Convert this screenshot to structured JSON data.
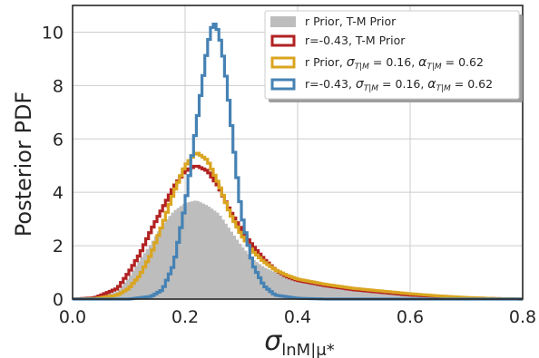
{
  "chart_data": {
    "type": "histogram",
    "title": "",
    "xlabel": "σ_{lnM|μ*}",
    "xlabel_main": "σ",
    "xlabel_sub": "lnM|μ*",
    "ylabel": "Posterior PDF",
    "xlim": [
      0.0,
      0.8
    ],
    "ylim": [
      0,
      11
    ],
    "xticks": [
      0.0,
      0.2,
      0.4,
      0.6,
      0.8
    ],
    "xtick_labels": [
      "0.0",
      "0.2",
      "0.4",
      "0.6",
      "0.8"
    ],
    "yticks": [
      0,
      2,
      4,
      6,
      8,
      10
    ],
    "ytick_labels": [
      "0",
      "2",
      "4",
      "6",
      "8",
      "10"
    ],
    "grid": true,
    "legend_position": "top-right",
    "series": [
      {
        "name": "r Prior, T-M Prior",
        "style": "filled",
        "color": "#bdbdbd",
        "x": [
          0.0,
          0.04,
          0.08,
          0.1,
          0.12,
          0.14,
          0.16,
          0.18,
          0.2,
          0.22,
          0.24,
          0.26,
          0.28,
          0.3,
          0.32,
          0.34,
          0.36,
          0.38,
          0.4,
          0.45,
          0.5,
          0.55,
          0.6,
          0.65,
          0.7,
          0.75,
          0.8
        ],
        "y": [
          0.0,
          0.05,
          0.3,
          0.8,
          1.5,
          2.1,
          2.8,
          3.3,
          3.6,
          3.7,
          3.5,
          3.2,
          2.6,
          2.0,
          1.5,
          1.2,
          1.0,
          0.9,
          0.8,
          0.6,
          0.45,
          0.3,
          0.2,
          0.12,
          0.05,
          0.02,
          0.0
        ]
      },
      {
        "name": "r=-0.43, T-M Prior",
        "style": "step",
        "color": "#b22222",
        "x": [
          0.0,
          0.04,
          0.08,
          0.1,
          0.12,
          0.14,
          0.16,
          0.18,
          0.2,
          0.22,
          0.24,
          0.26,
          0.28,
          0.3,
          0.32,
          0.34,
          0.36,
          0.38,
          0.4,
          0.45,
          0.5,
          0.55,
          0.6,
          0.65,
          0.7,
          0.75,
          0.8
        ],
        "y": [
          0.0,
          0.05,
          0.4,
          1.0,
          1.7,
          2.6,
          3.4,
          4.2,
          4.8,
          5.0,
          4.8,
          4.2,
          3.3,
          2.6,
          2.0,
          1.5,
          1.1,
          0.85,
          0.7,
          0.5,
          0.35,
          0.25,
          0.15,
          0.1,
          0.05,
          0.02,
          0.0
        ]
      },
      {
        "name": "r Prior, σ_{T|M} = 0.16, α_{T|M} = 0.62",
        "name_parts": [
          "r Prior, ",
          "σ",
          "T|M",
          " = 0.16, ",
          "α",
          "T|M",
          " = 0.62"
        ],
        "style": "step",
        "color": "#daa520",
        "x": [
          0.0,
          0.04,
          0.08,
          0.1,
          0.12,
          0.14,
          0.16,
          0.18,
          0.2,
          0.22,
          0.24,
          0.26,
          0.28,
          0.3,
          0.32,
          0.34,
          0.36,
          0.38,
          0.4,
          0.45,
          0.5,
          0.55,
          0.6,
          0.65,
          0.7,
          0.75,
          0.8
        ],
        "y": [
          0.0,
          0.02,
          0.15,
          0.4,
          0.9,
          1.7,
          2.8,
          4.0,
          5.0,
          5.5,
          5.2,
          4.3,
          3.2,
          2.4,
          1.8,
          1.4,
          1.1,
          0.9,
          0.75,
          0.55,
          0.4,
          0.3,
          0.2,
          0.12,
          0.06,
          0.02,
          0.0
        ]
      },
      {
        "name": "r=-0.43, σ_{T|M} = 0.16, α_{T|M} = 0.62",
        "name_parts": [
          "r=-0.43, ",
          "σ",
          "T|M",
          " = 0.16, ",
          "α",
          "T|M",
          " = 0.62"
        ],
        "style": "step",
        "color": "#4682b4",
        "x": [
          0.0,
          0.1,
          0.14,
          0.16,
          0.18,
          0.2,
          0.22,
          0.24,
          0.25,
          0.26,
          0.27,
          0.28,
          0.29,
          0.3,
          0.32,
          0.34,
          0.36,
          0.4,
          0.45
        ],
        "y": [
          0.0,
          0.0,
          0.1,
          0.35,
          1.3,
          3.5,
          6.5,
          9.5,
          10.4,
          10.0,
          8.8,
          7.0,
          5.0,
          3.2,
          1.3,
          0.5,
          0.15,
          0.03,
          0.0
        ]
      }
    ]
  }
}
